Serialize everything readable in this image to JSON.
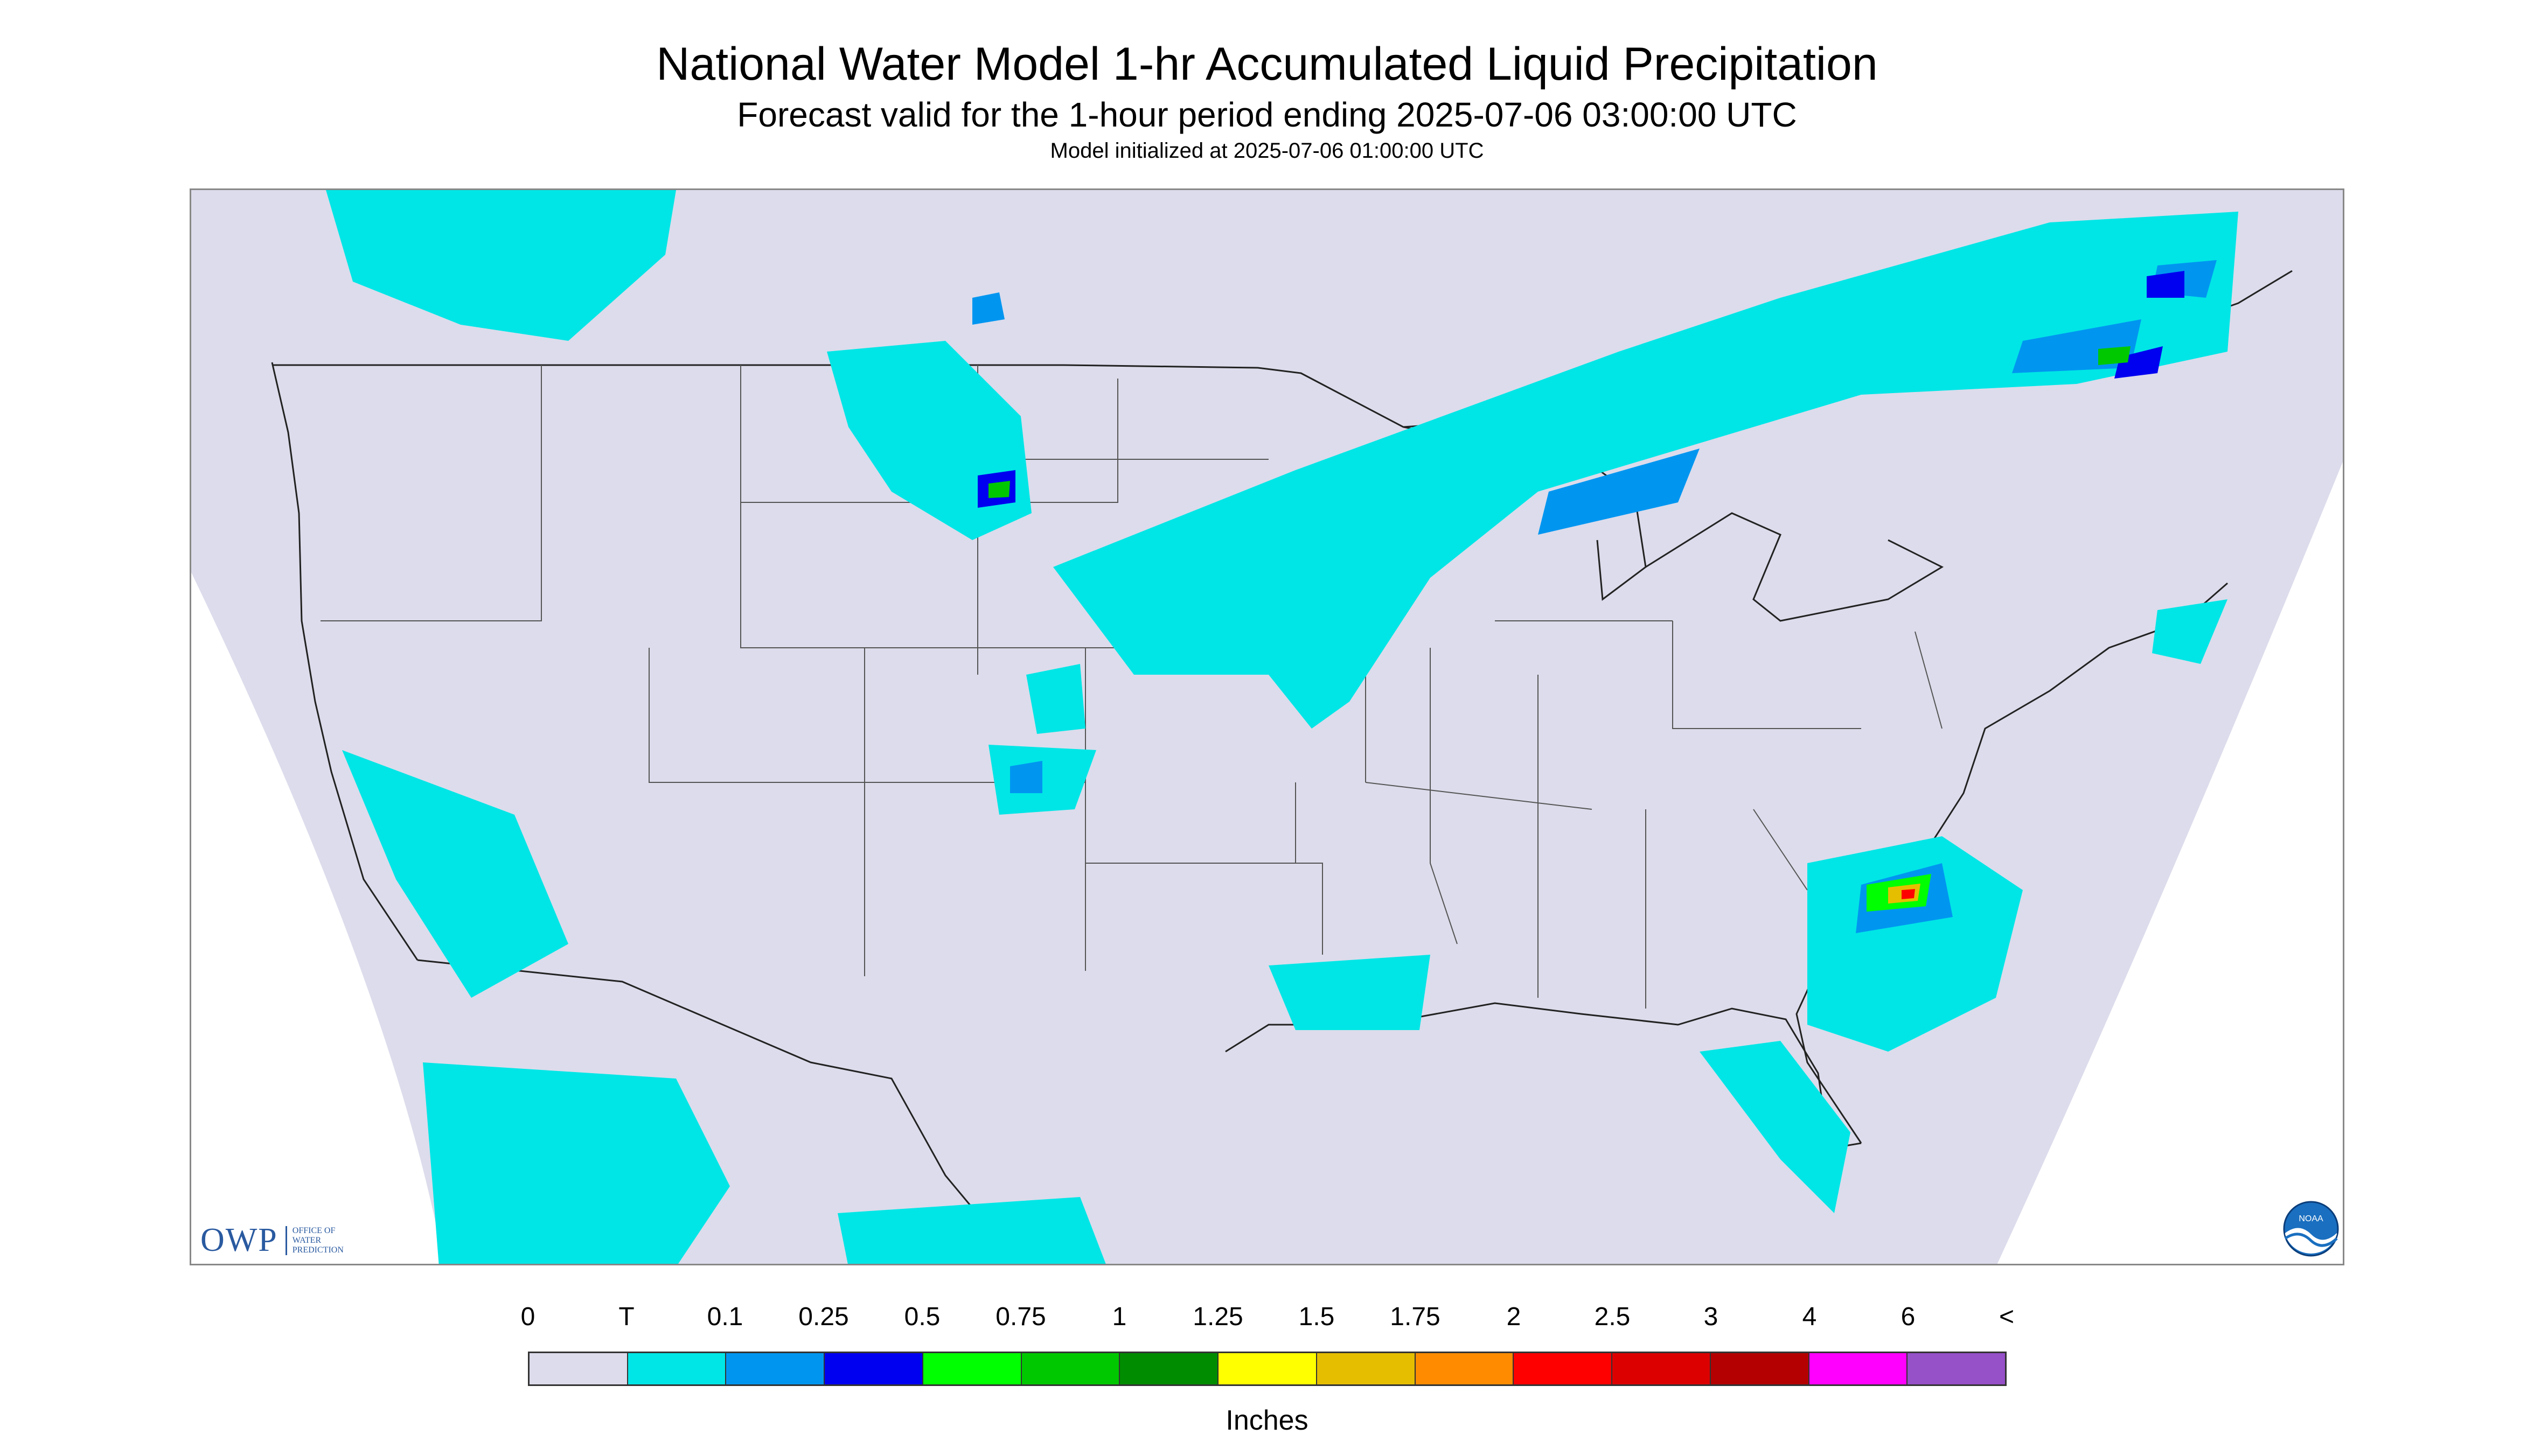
{
  "title": "National Water Model 1-hr Accumulated Liquid Precipitation",
  "subtitle": "Forecast valid for the 1-hour period ending 2025-07-06 03:00:00 UTC",
  "model_init": "Model initialized at 2025-07-06 01:00:00 UTC",
  "logos": {
    "owp_mark": "OWP",
    "owp_text": "OFFICE OF WATER PREDICTION",
    "noaa": "NOAA"
  },
  "legend": {
    "labels": [
      "0",
      "T",
      "0.1",
      "0.25",
      "0.5",
      "0.75",
      "1",
      "1.25",
      "1.5",
      "1.75",
      "2",
      "2.5",
      "3",
      "4",
      "6",
      "<"
    ],
    "colors": [
      "#dcdcec",
      "#00e6e6",
      "#0096f0",
      "#0000f0",
      "#00ff00",
      "#00c800",
      "#008c00",
      "#ffff00",
      "#e6be00",
      "#ff8c00",
      "#ff0000",
      "#dc0000",
      "#b40000",
      "#ff00ff",
      "#9650c8"
    ],
    "units": "Inches"
  },
  "map": {
    "background": "#dcdcec",
    "outside": "#ffffff",
    "boundary_color": "#222222"
  }
}
